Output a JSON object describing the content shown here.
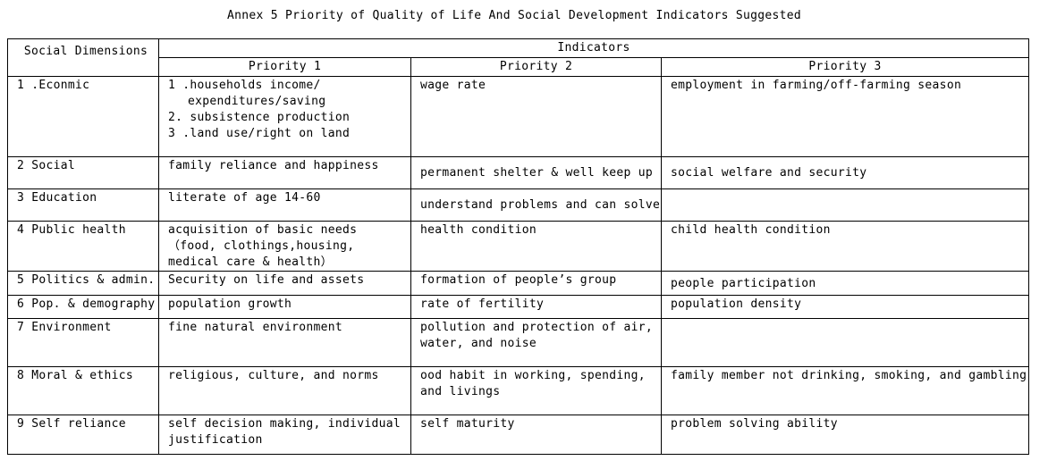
{
  "title": "Annex 5 Priority of Quality of Life And Social Development Indicators Suggested",
  "header": {
    "social_dimensions": "Social Dimensions",
    "indicators": "Indicators",
    "priority1": "Priority 1",
    "priority2": "Priority 2",
    "priority3": "Priority 3"
  },
  "rows": [
    {
      "dimension": "1 .Econmic",
      "p1_lines": [
        "1 .households income/",
        "expenditures/saving",
        "2. subsistence production",
        "3 .land use/right on land"
      ],
      "p2": "wage rate",
      "p3": "employment in farming/off-farming season"
    },
    {
      "dimension": "2 Social",
      "p1": "family reliance and happiness",
      "p2": "permanent shelter & well keep up",
      "p3": "social welfare and security"
    },
    {
      "dimension": "3 Education",
      "p1": "literate of age 14-60",
      "p2": "understand problems and can solve",
      "p3": ""
    },
    {
      "dimension": "4 Public health",
      "p1": "acquisition of basic needs （food, clothings,housing, medical care & health）",
      "p2": "health condition",
      "p3": "child health condition"
    },
    {
      "dimension": "5 Politics & admin.",
      "p1": "Security on life and assets",
      "p2": "formation of people’s group",
      "p3": "people participation"
    },
    {
      "dimension": "6 Pop. & demography",
      "p1": "population growth",
      "p2": "rate of fertility",
      "p3": "population density"
    },
    {
      "dimension": "7 Environment",
      "p1": "fine natural environment",
      "p2": "pollution and protection of air, water, and noise",
      "p3": ""
    },
    {
      "dimension": "8 Moral & ethics",
      "p1": "religious, culture, and norms",
      "p2": "ood habit in working, spending, and livings",
      "p3": "family member not drinking, smoking, and gambling"
    },
    {
      "dimension": "9 Self reliance",
      "p1": "self decision making, individual justification",
      "p2": "self maturity",
      "p3": "problem solving ability"
    }
  ]
}
